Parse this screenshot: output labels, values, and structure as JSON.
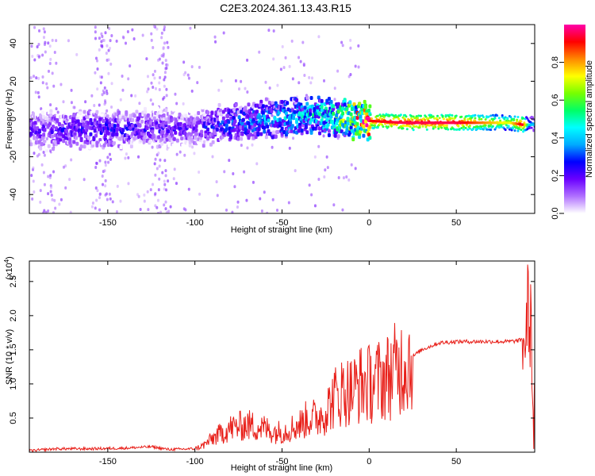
{
  "chart_data": [
    {
      "type": "heatmap",
      "title": "C2E3.2024.361.13.43.R15",
      "xlabel": "Height of straight line (km)",
      "ylabel": "Frequency (Hz)",
      "xlim": [
        -195,
        95
      ],
      "ylim": [
        -50,
        50
      ],
      "xticks": [
        -150,
        -100,
        -50,
        0,
        50
      ],
      "yticks": [
        -40,
        -20,
        0,
        20,
        40
      ],
      "colorbar": {
        "label": "Normalized spectral amplitude",
        "range": [
          0,
          1
        ],
        "ticks": [
          0.0,
          0.2,
          0.4,
          0.6,
          0.8
        ],
        "colors": [
          "#ffffff",
          "#b070ff",
          "#6a00ff",
          "#0000ff",
          "#00aaff",
          "#00ffff",
          "#00ff66",
          "#77ff00",
          "#ffff00",
          "#ff8800",
          "#ff0000",
          "#ff00aa"
        ]
      },
      "ridge": {
        "x": [
          -195,
          -150,
          -120,
          -100,
          -80,
          -60,
          -40,
          -30,
          -20,
          0,
          20,
          50,
          80,
          88,
          92
        ],
        "frequency": [
          -6,
          -5,
          -5,
          -5,
          -2,
          0,
          2,
          3,
          1,
          -1,
          -2,
          -2,
          -2,
          -3,
          -3
        ],
        "amplitude": [
          0.2,
          0.25,
          0.2,
          0.2,
          0.3,
          0.35,
          0.4,
          0.45,
          0.5,
          0.9,
          0.95,
          0.95,
          0.7,
          0.95,
          0.4
        ]
      }
    },
    {
      "type": "line",
      "title": "",
      "xlabel": "Height of straight line (km)",
      "ylabel": "SNR (10 * v/v)",
      "y_multiplier_label": "(x10",
      "y_multiplier_exp": "4",
      "xlim": [
        -195,
        95
      ],
      "ylim": [
        0,
        2.8
      ],
      "xticks": [
        -150,
        -100,
        -50,
        0,
        50
      ],
      "yticks": [
        0.5,
        1.0,
        1.5,
        2.0,
        2.5
      ],
      "color": "#e8201a",
      "x": [
        -195,
        -180,
        -160,
        -140,
        -125,
        -115,
        -100,
        -95,
        -90,
        -80,
        -70,
        -60,
        -55,
        -50,
        -45,
        -40,
        -35,
        -30,
        -25,
        -20,
        -15,
        -10,
        -5,
        0,
        5,
        10,
        15,
        20,
        25,
        30,
        35,
        40,
        50,
        60,
        70,
        80,
        85,
        88,
        90,
        91,
        92,
        93,
        94,
        95
      ],
      "y": [
        0.02,
        0.05,
        0.05,
        0.06,
        0.08,
        0.04,
        0.05,
        0.1,
        0.2,
        0.35,
        0.4,
        0.35,
        0.3,
        0.3,
        0.35,
        0.4,
        0.5,
        0.5,
        0.6,
        0.8,
        0.9,
        0.9,
        1.0,
        1.0,
        1.05,
        1.1,
        1.2,
        1.3,
        1.4,
        1.5,
        1.55,
        1.6,
        1.62,
        1.62,
        1.62,
        1.62,
        1.63,
        1.65,
        1.6,
        2.3,
        1.7,
        2.0,
        0.5,
        0.6
      ]
    }
  ]
}
